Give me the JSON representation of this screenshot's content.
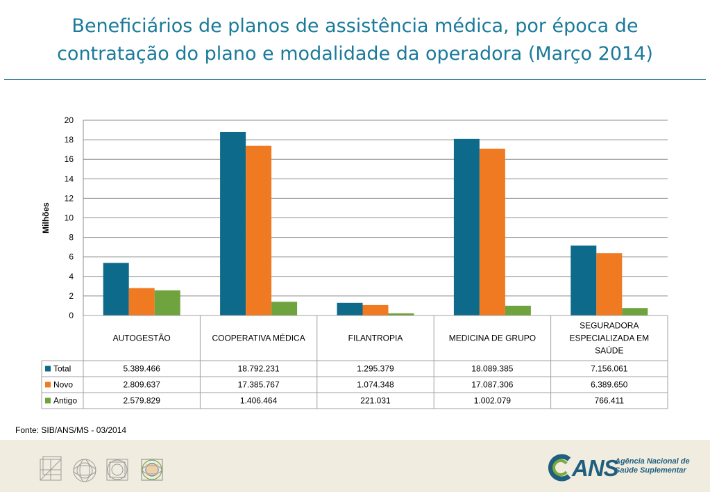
{
  "title": {
    "line1": "Beneficiários de planos de assistência médica, por época de",
    "line2": "contratação do plano e modalidade da operadora (Março 2014)"
  },
  "source": "Fonte: SIB/ANS/MS - 03/2014",
  "logo": {
    "text": "ANS",
    "line1": "Agência Nacional de",
    "line2": "Saúde Suplementar"
  },
  "icons": [
    "grid-cube-icon",
    "circles-icon",
    "squares-circles-icon",
    "colored-circles-icon"
  ],
  "chart_data": {
    "type": "bar",
    "ylabel": "Milhões",
    "ylim": [
      0,
      20
    ],
    "yticks": [
      "0",
      "2",
      "4",
      "6",
      "8",
      "10",
      "12",
      "14",
      "16",
      "18",
      "20"
    ],
    "grid": true,
    "categories": [
      [
        "AUTOGESTÃO"
      ],
      [
        "COOPERATIVA MÉDICA"
      ],
      [
        "FILANTROPIA"
      ],
      [
        "MEDICINA DE GRUPO"
      ],
      [
        "SEGURADORA",
        "ESPECIALIZADA EM",
        "SAÚDE"
      ]
    ],
    "series": [
      {
        "name": "Total",
        "color": "#0e6a8a",
        "values": [
          5.389466,
          18.792231,
          1.295379,
          18.089385,
          7.156061
        ],
        "labels": [
          "5.389.466",
          "18.792.231",
          "1.295.379",
          "18.089.385",
          "7.156.061"
        ]
      },
      {
        "name": "Novo",
        "color": "#f07a22",
        "values": [
          2.809637,
          17.385767,
          1.074348,
          17.087306,
          6.38965
        ],
        "labels": [
          "2.809.637",
          "17.385.767",
          "1.074.348",
          "17.087.306",
          "6.389.650"
        ]
      },
      {
        "name": "Antigo",
        "color": "#6fa33e",
        "values": [
          2.579829,
          1.406464,
          0.221031,
          1.002079,
          0.766411
        ],
        "labels": [
          "2.579.829",
          "1.406.464",
          "221.031",
          "1.002.079",
          "766.411"
        ]
      }
    ]
  }
}
